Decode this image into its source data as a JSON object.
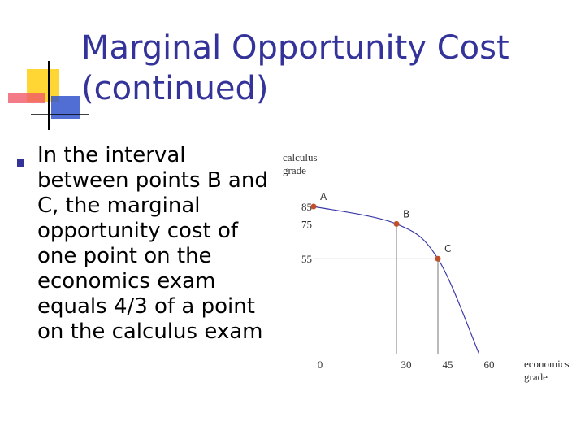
{
  "header": {
    "title_lines": [
      "Marginal Opportunity Cost",
      "(continued)"
    ]
  },
  "bullet": {
    "lines": [
      "In the interval",
      "between points B and",
      "C, the marginal",
      "opportunity cost of",
      "one point on the",
      "economics exam",
      "equals 4/3 of a point",
      "on the calculus exam"
    ]
  },
  "chart_data": {
    "type": "line",
    "y_label_lines": [
      "calculus",
      "grade"
    ],
    "x_label_lines": [
      "economics",
      "grade"
    ],
    "x": [
      0,
      30,
      45,
      60
    ],
    "series": [
      {
        "color": "#3b3ba8",
        "values": [
          85,
          75,
          55,
          0
        ],
        "point_labels": [
          "A",
          "B",
          "C",
          null
        ],
        "marker_color": "#c0502a"
      }
    ],
    "xlim": [
      0,
      60
    ],
    "ylim": [
      0,
      85
    ],
    "xticks": [
      0,
      30,
      45,
      60
    ],
    "yticks": [
      55,
      75,
      85
    ]
  }
}
